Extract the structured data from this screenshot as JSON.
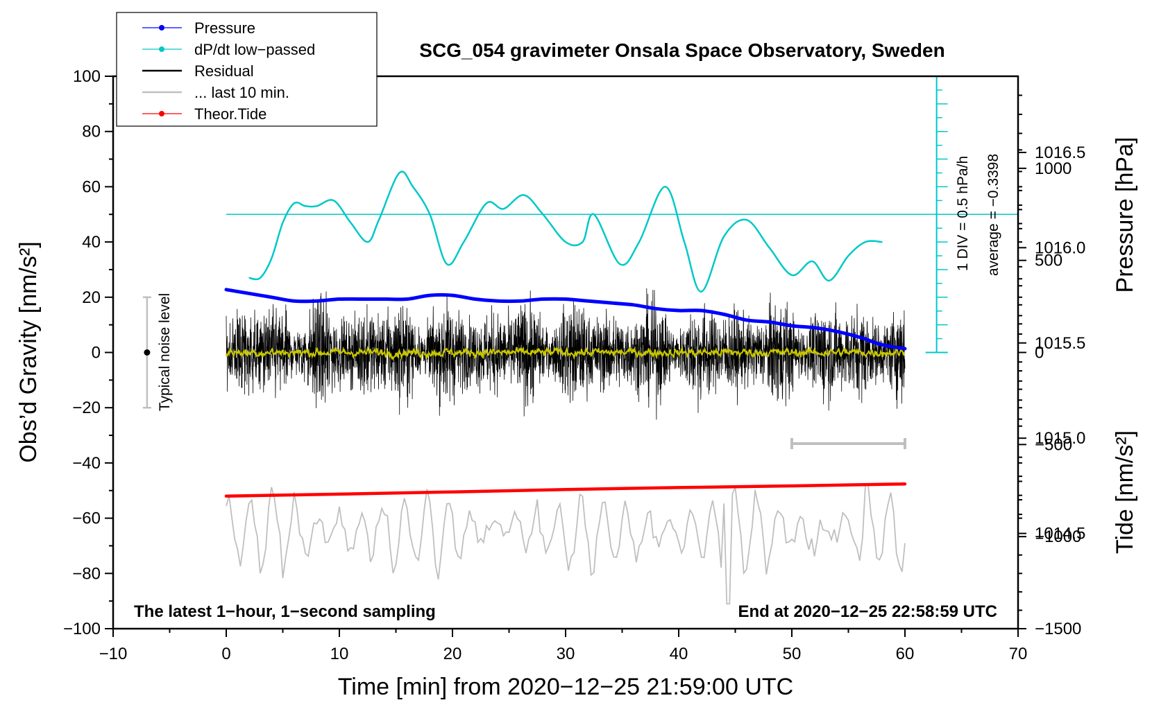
{
  "chart_data": {
    "type": "line",
    "title": "SCG_054 gravimeter Onsala Space Observatory, Sweden",
    "xlabel": "Time [min] from 2020−12−25 21:59:00 UTC",
    "ylabel_left": "Obs’d Gravity [nm/s²]",
    "ylabel_right_top": "Pressure [hPa]",
    "ylabel_right_bottom": "Tide [nm/s²]",
    "xlim": [
      -10,
      70
    ],
    "ylim": [
      -100,
      100
    ],
    "xticks": [
      -10,
      0,
      10,
      20,
      30,
      40,
      50,
      60,
      70
    ],
    "xtick_labels": [
      "−10",
      "0",
      "10",
      "20",
      "30",
      "40",
      "50",
      "60",
      "70"
    ],
    "yticks": [
      -100,
      -80,
      -60,
      -40,
      -20,
      0,
      20,
      40,
      60,
      80,
      100
    ],
    "ytick_labels": [
      "−100",
      "−80",
      "−60",
      "−40",
      "−20",
      "0",
      "20",
      "40",
      "60",
      "80",
      "100"
    ],
    "pressure_axis": {
      "range": [
        1014.0,
        1016.9
      ],
      "ticks": [
        1014.5,
        1015.0,
        1015.5,
        1016.0,
        1016.5
      ],
      "tick_labels": [
        "1014.5",
        "1015.0",
        "1015.5",
        "1016.0",
        "1016.5"
      ]
    },
    "tide_axis": {
      "range": [
        -1500,
        1500
      ],
      "ticks": [
        -1500,
        -1000,
        -500,
        0,
        500,
        1000
      ],
      "tick_labels": [
        "−1500",
        "−1000",
        "−500",
        "0",
        "500",
        "1000"
      ]
    },
    "legend": [
      {
        "label": "Pressure",
        "color": "#0000ff",
        "marker": "dot"
      },
      {
        "label": "dP/dt low−passed",
        "color": "#00c8c8",
        "marker": "dot"
      },
      {
        "label": "Residual",
        "color": "#000000",
        "marker": "line"
      },
      {
        "label": "... last 10 min.",
        "color": "#bfbfbf",
        "marker": "line"
      },
      {
        "label": "Theor.Tide",
        "color": "#ff0000",
        "marker": "dot"
      }
    ],
    "annotations": {
      "bottom_left": "The latest 1−hour, 1−second sampling",
      "bottom_right": "End at 2020−12−25 22:58:59 UTC",
      "noise_label": "Typical noise level",
      "noise_range": [
        -20,
        20
      ],
      "div_label": "1 DIV = 0.5 hPa/h",
      "average_label": "average = −0.3398",
      "window_bar": [
        50,
        60
      ]
    },
    "series": [
      {
        "name": "Pressure",
        "color": "#0000ff",
        "unit": "hPa",
        "x": [
          0,
          2,
          4,
          6,
          8,
          10,
          12,
          14,
          16,
          18,
          20,
          22,
          24,
          26,
          28,
          30,
          32,
          34,
          36,
          38,
          40,
          42,
          44,
          46,
          48,
          50,
          52,
          54,
          56,
          58,
          60
        ],
        "values": [
          1015.78,
          1015.76,
          1015.74,
          1015.72,
          1015.72,
          1015.73,
          1015.73,
          1015.73,
          1015.73,
          1015.75,
          1015.75,
          1015.73,
          1015.72,
          1015.72,
          1015.73,
          1015.73,
          1015.72,
          1015.71,
          1015.7,
          1015.68,
          1015.67,
          1015.67,
          1015.65,
          1015.62,
          1015.61,
          1015.59,
          1015.58,
          1015.56,
          1015.53,
          1015.49,
          1015.47
        ]
      },
      {
        "name": "dP/dt low−passed",
        "color": "#00c8c8",
        "unit": "nm/s² plot scale",
        "x": [
          2,
          3,
          4,
          5,
          6,
          7,
          8,
          9.5,
          11,
          12.5,
          13.5,
          15.3,
          16.5,
          18,
          19.5,
          21,
          23,
          24.5,
          26.3,
          28,
          30,
          31.5,
          32.5,
          34.8,
          36.5,
          38.8,
          40.5,
          42,
          44,
          46,
          48,
          50,
          51.8,
          53.3,
          55,
          56.5,
          58
        ],
        "values": [
          27,
          27,
          34,
          47,
          54,
          53,
          53,
          55,
          47,
          40,
          48,
          65,
          60,
          50,
          32,
          40,
          54,
          52,
          57,
          50,
          40,
          40,
          50,
          32,
          40,
          60,
          40,
          22,
          42,
          48,
          38,
          28,
          33,
          26,
          35,
          40,
          40
        ]
      },
      {
        "name": "Residual",
        "color": "#000000",
        "unit": "nm/s²",
        "x": [
          0,
          60
        ],
        "spread": [
          -32,
          29
        ]
      },
      {
        "name": "Residual smoothed",
        "color": "#c8c800",
        "unit": "nm/s²",
        "x": [
          0,
          60
        ],
        "values": [
          0,
          0
        ]
      },
      {
        "name": "... last 10 min.",
        "color": "#bfbfbf",
        "unit": "nm/s²",
        "x": [
          0,
          60
        ],
        "spread": [
          -91,
          -48
        ]
      },
      {
        "name": "Theor.Tide",
        "color": "#ff0000",
        "unit": "nm/s²",
        "x": [
          0,
          10,
          20,
          30,
          40,
          50,
          60
        ],
        "values": [
          -52,
          -51.3,
          -50.5,
          -49.6,
          -48.9,
          -48.3,
          -47.6
        ]
      }
    ]
  }
}
